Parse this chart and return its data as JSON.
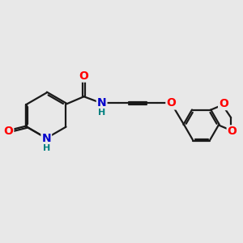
{
  "bg_color": "#e8e8e8",
  "bond_color": "#1a1a1a",
  "bond_width": 1.6,
  "dbo": 0.04,
  "atom_colors": {
    "O": "#ff0000",
    "N": "#0000cc",
    "H_label": "#008080"
  },
  "font_size": 10,
  "font_size_H": 8
}
